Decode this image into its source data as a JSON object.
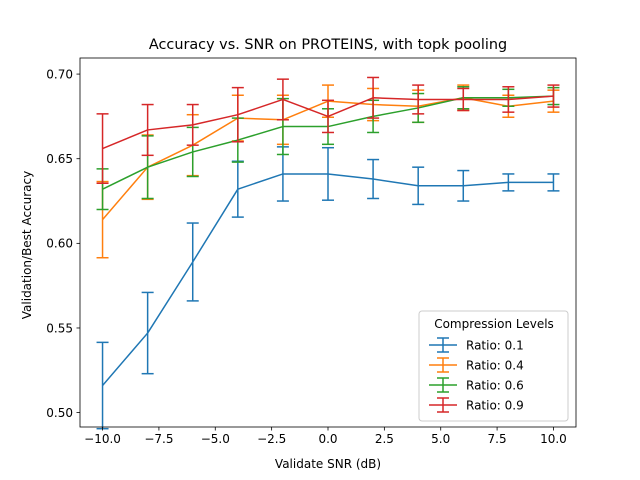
{
  "chart_data": {
    "type": "line",
    "title": "Accuracy vs. SNR on PROTEINS, with topk pooling",
    "xlabel": "Validate SNR (dB)",
    "ylabel": "Validation/Best Accuracy",
    "xlim": [
      -11.0,
      11.0
    ],
    "ylim": [
      0.4915,
      0.7095
    ],
    "grid": false,
    "legend_placement": "lower-right",
    "legend_title": "Compression Levels",
    "x_ticks": [
      -10,
      -7.5,
      -5,
      -2.5,
      0,
      2.5,
      5,
      7.5,
      10
    ],
    "x_tick_labels": [
      "−10.0",
      "−7.5",
      "−5.0",
      "−2.5",
      "0.0",
      "2.5",
      "5.0",
      "7.5",
      "10.0"
    ],
    "y_ticks": [
      0.5,
      0.55,
      0.6,
      0.65,
      0.7
    ],
    "y_tick_labels": [
      "0.50",
      "0.55",
      "0.60",
      "0.65",
      "0.70"
    ],
    "x": [
      -10,
      -8,
      -6,
      -4,
      -2,
      0,
      2,
      4,
      6,
      8,
      10
    ],
    "series": [
      {
        "name": "Ratio: 0.1",
        "color": "#1f77b4",
        "values": [
          0.516,
          0.547,
          0.589,
          0.632,
          0.641,
          0.641,
          0.638,
          0.634,
          0.634,
          0.636,
          0.636
        ],
        "errors": [
          0.0255,
          0.024,
          0.023,
          0.0165,
          0.016,
          0.0155,
          0.0115,
          0.011,
          0.009,
          0.005,
          0.005
        ]
      },
      {
        "name": "Ratio: 0.4",
        "color": "#ff7f0e",
        "values": [
          0.614,
          0.645,
          0.658,
          0.674,
          0.673,
          0.684,
          0.682,
          0.681,
          0.686,
          0.681,
          0.684
        ],
        "errors": [
          0.0225,
          0.019,
          0.018,
          0.0135,
          0.0145,
          0.0095,
          0.0095,
          0.0095,
          0.0075,
          0.0065,
          0.0065
        ]
      },
      {
        "name": "Ratio: 0.6",
        "color": "#2ca02c",
        "values": [
          0.632,
          0.645,
          0.654,
          0.661,
          0.669,
          0.669,
          0.675,
          0.68,
          0.686,
          0.686,
          0.687
        ],
        "errors": [
          0.012,
          0.0185,
          0.0145,
          0.013,
          0.0165,
          0.0105,
          0.0095,
          0.0085,
          0.0065,
          0.005,
          0.005
        ]
      },
      {
        "name": "Ratio: 0.9",
        "color": "#d62728",
        "values": [
          0.656,
          0.667,
          0.67,
          0.676,
          0.685,
          0.675,
          0.686,
          0.685,
          0.685,
          0.685,
          0.687
        ],
        "errors": [
          0.0205,
          0.015,
          0.012,
          0.016,
          0.012,
          0.0095,
          0.012,
          0.0085,
          0.0065,
          0.0075,
          0.0065
        ]
      }
    ]
  }
}
